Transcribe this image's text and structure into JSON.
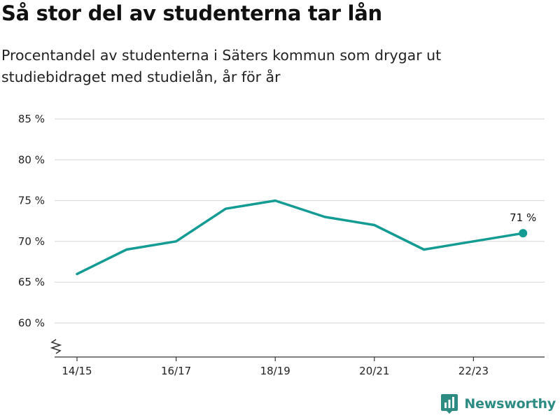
{
  "header": {
    "title": "Så stor del av studenterna tar lån",
    "subtitle": "Procentandel av studenterna i Säters kommun som drygar ut studiebidraget med studielån, år för år"
  },
  "brand": {
    "name": "Newsworthy",
    "icon": "newsworthy-logo-icon",
    "color": "#2c8c84"
  },
  "chart_data": {
    "type": "line",
    "title": "",
    "xlabel": "",
    "ylabel": "",
    "x": [
      "14/15",
      "15/16",
      "16/17",
      "17/18",
      "18/19",
      "19/20",
      "20/21",
      "21/22",
      "22/23",
      "23/24"
    ],
    "x_tick_labels": [
      "14/15",
      "16/17",
      "18/19",
      "20/21",
      "22/23"
    ],
    "series": [
      {
        "values": [
          66,
          69,
          70,
          74,
          75,
          73,
          72,
          69,
          70,
          71
        ],
        "color": "#149c94"
      }
    ],
    "ylim": [
      56,
      85
    ],
    "y_ticks": [
      60,
      65,
      70,
      75,
      80,
      85
    ],
    "y_tick_suffix": " %",
    "axis_break": true,
    "grid": true,
    "end_label": "71 %",
    "legend": "none"
  }
}
